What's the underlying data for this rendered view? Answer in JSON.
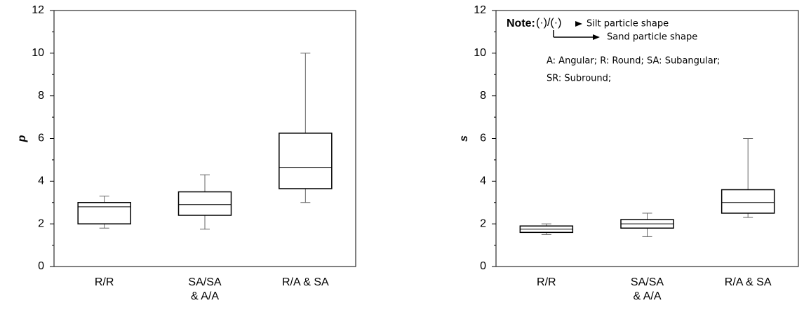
{
  "chart_data": [
    {
      "type": "box",
      "ylabel": "p",
      "categories": [
        "R/R",
        "SA/SA\n& A/A",
        "R/A & SA"
      ],
      "boxes": [
        {
          "min": 1.8,
          "q1": 2.0,
          "median": 2.8,
          "q3": 3.0,
          "max": 3.3
        },
        {
          "min": 1.75,
          "q1": 2.4,
          "median": 2.9,
          "q3": 3.5,
          "max": 4.3
        },
        {
          "min": 3.0,
          "q1": 3.65,
          "median": 4.65,
          "q3": 6.25,
          "max": 10
        }
      ],
      "ylim": [
        0,
        12
      ],
      "yticks": [
        0,
        2,
        4,
        6,
        8,
        10,
        12
      ],
      "yminorticks": [
        1,
        3,
        5,
        7,
        9,
        11
      ],
      "color": "#000000"
    },
    {
      "type": "box",
      "ylabel": "s",
      "categories": [
        "R/R",
        "SA/SA\n& A/A",
        "R/A & SA"
      ],
      "boxes": [
        {
          "min": 1.5,
          "q1": 1.6,
          "median": 1.75,
          "q3": 1.9,
          "max": 2.0
        },
        {
          "min": 1.4,
          "q1": 1.8,
          "median": 2.0,
          "q3": 2.2,
          "max": 2.5
        },
        {
          "min": 2.3,
          "q1": 2.5,
          "median": 3.0,
          "q3": 3.6,
          "max": 6.0
        }
      ],
      "ylim": [
        0,
        12
      ],
      "yticks": [
        0,
        2,
        4,
        6,
        8,
        10,
        12
      ],
      "yminorticks": [
        1,
        3,
        5,
        7,
        9,
        11
      ],
      "color": "#000000",
      "annotations": {
        "note": "Note:",
        "symbol": "(·)/(·)",
        "silt": "Silt particle shape",
        "sand": "Sand particle shape",
        "legend1": "A: Angular; R: Round; SA: Subangular;",
        "legend2": "SR: Subround;"
      }
    }
  ]
}
